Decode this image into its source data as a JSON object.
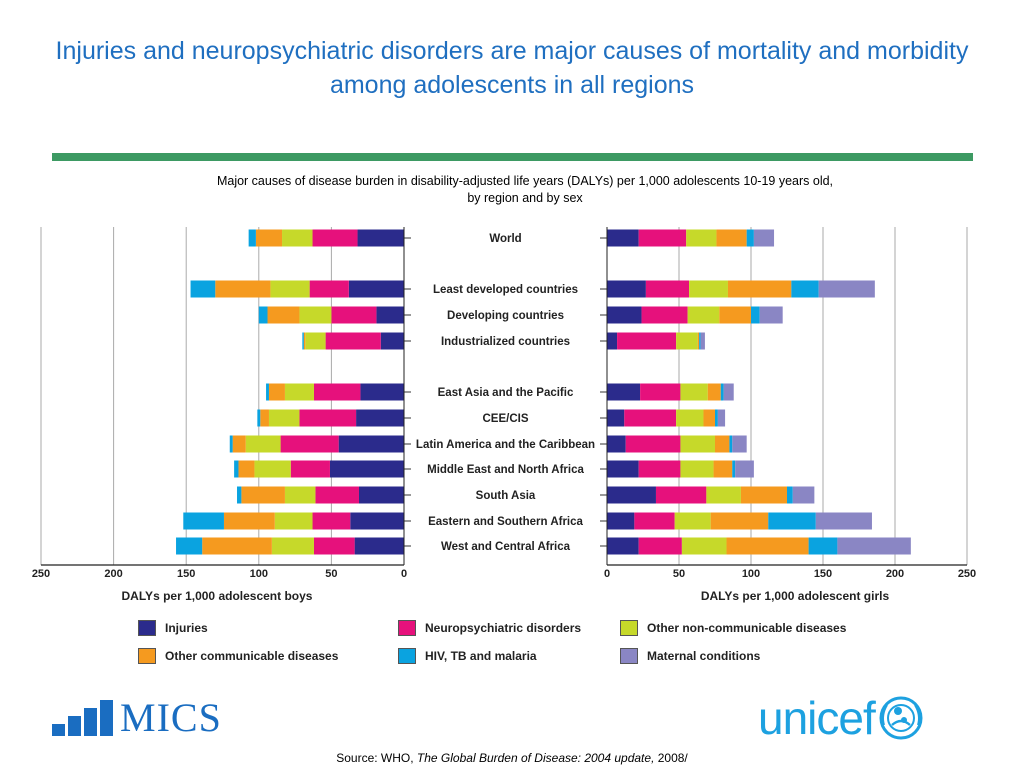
{
  "title": "Injuries and neuropsychiatric disorders are major causes of mortality and morbidity among adolescents in all regions",
  "subtitle_line1": "Major causes of disease burden in disability-adjusted life years (DALYs) per 1,000 adolescents 10-19 years old,",
  "subtitle_line2": "by region and by sex",
  "source": {
    "prefix": "Source: WHO, ",
    "title": "The Global Burden of Disease: 2004 update,",
    "suffix": " 2008/"
  },
  "logos": {
    "mics": "MICS",
    "unicef": "unicef"
  },
  "colors": {
    "injuries": "#2b2b8c",
    "neuro": "#e6117c",
    "noncomm": "#c6d92a",
    "communicable": "#f59a1f",
    "hiv": "#0aa3e0",
    "maternal": "#8a86c4",
    "title": "#1f6fc0",
    "rule": "#3d9a63"
  },
  "chart_data": {
    "type": "bar",
    "orientation": "horizontal-diverging",
    "categories": [
      "World",
      "Least developed countries",
      "Developing countries",
      "Industrialized countries",
      "East Asia and the Pacific",
      "CEE/CIS",
      "Latin America and the Caribbean",
      "Middle East and North Africa",
      "South Asia",
      "Eastern and Southern Africa",
      "West and Central Africa"
    ],
    "series_names": [
      "Injuries",
      "Neuropsychiatric disorders",
      "Other non-communicable diseases",
      "Other communicable diseases",
      "HIV, TB and malaria",
      "Maternal conditions"
    ],
    "series_keys": [
      "injuries",
      "neuro",
      "noncomm",
      "communicable",
      "hiv",
      "maternal"
    ],
    "boys": {
      "xlabel": "DALYs per 1,000 adolescent boys",
      "xlim": [
        250,
        0
      ],
      "ticks": [
        250,
        200,
        150,
        100,
        50,
        0
      ],
      "values": [
        [
          32,
          31,
          21,
          18,
          5,
          0
        ],
        [
          38,
          27,
          27,
          38,
          17,
          0
        ],
        [
          19,
          31,
          22,
          22,
          6,
          0
        ],
        [
          16,
          38,
          14,
          1,
          1,
          0
        ],
        [
          30,
          32,
          20,
          11,
          2,
          0
        ],
        [
          33,
          39,
          21,
          6,
          2,
          0
        ],
        [
          45,
          40,
          24,
          9,
          2,
          0
        ],
        [
          51,
          27,
          25,
          11,
          3,
          0
        ],
        [
          31,
          30,
          21,
          30,
          3,
          0
        ],
        [
          37,
          26,
          26,
          35,
          28,
          0
        ],
        [
          34,
          28,
          29,
          48,
          18,
          0
        ]
      ]
    },
    "girls": {
      "xlabel": "DALYs per 1,000 adolescent girls",
      "xlim": [
        0,
        250
      ],
      "ticks": [
        0,
        50,
        100,
        150,
        200,
        250
      ],
      "values": [
        [
          22,
          33,
          21,
          21,
          5,
          14
        ],
        [
          27,
          30,
          27,
          44,
          19,
          39
        ],
        [
          24,
          32,
          22,
          22,
          6,
          16
        ],
        [
          7,
          41,
          15,
          1,
          1,
          3
        ],
        [
          23,
          28,
          19,
          9,
          2,
          7
        ],
        [
          12,
          36,
          19,
          8,
          2,
          5
        ],
        [
          13,
          38,
          24,
          10,
          2,
          10
        ],
        [
          22,
          29,
          23,
          13,
          2,
          13
        ],
        [
          34,
          35,
          24,
          32,
          4,
          15
        ],
        [
          19,
          28,
          25,
          40,
          33,
          39
        ],
        [
          22,
          30,
          31,
          57,
          20,
          51
        ]
      ]
    }
  }
}
